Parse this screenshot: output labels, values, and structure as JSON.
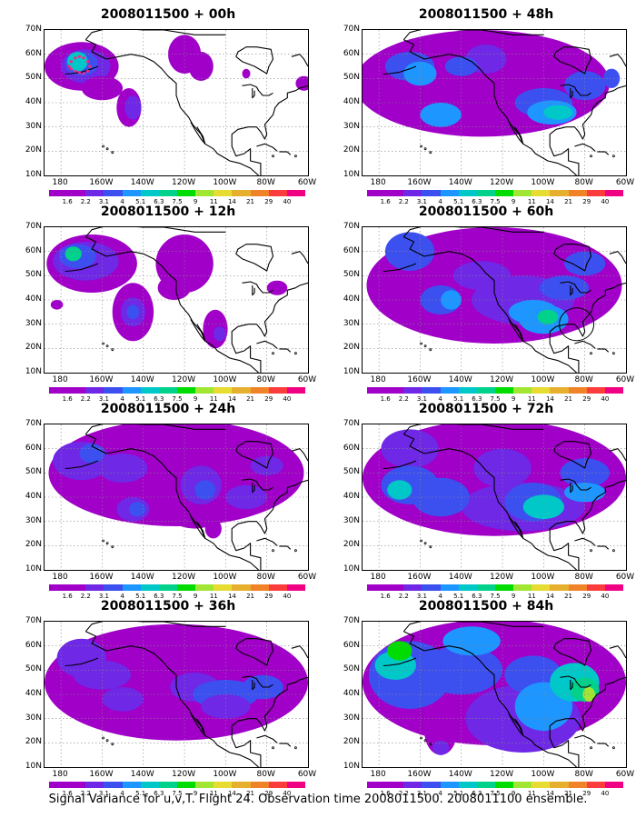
{
  "caption": "Signal Variance for u,v,T. Flight 24. Observation time 2008011500. 2008011100 ensemble.",
  "latitude_labels": [
    "70N",
    "60N",
    "50N",
    "40N",
    "30N",
    "20N",
    "10N"
  ],
  "longitude_labels": [
    "180",
    "160W",
    "140W",
    "120W",
    "100W",
    "80W",
    "60W"
  ],
  "colorbar": {
    "colors": [
      "#a000c8",
      "#6e28e6",
      "#3c50f0",
      "#1e96ff",
      "#00c8c8",
      "#00d28c",
      "#00dc00",
      "#a0e632",
      "#e6dc32",
      "#e6af2d",
      "#f08228",
      "#fa3c3c",
      "#f00082"
    ],
    "labels": [
      "1.6",
      "2.2",
      "3.1",
      "4",
      "5.1",
      "6.3",
      "7.5",
      "9",
      "11",
      "14",
      "21",
      "29",
      "40"
    ]
  },
  "panels": [
    {
      "title": "2008011500 + 00h",
      "lead_hours": 0
    },
    {
      "title": "2008011500 + 48h",
      "lead_hours": 48
    },
    {
      "title": "2008011500 + 12h",
      "lead_hours": 12
    },
    {
      "title": "2008011500 + 60h",
      "lead_hours": 60
    },
    {
      "title": "2008011500 + 24h",
      "lead_hours": 24
    },
    {
      "title": "2008011500 + 72h",
      "lead_hours": 72
    },
    {
      "title": "2008011500 + 36h",
      "lead_hours": 36
    },
    {
      "title": "2008011500 + 84h",
      "lead_hours": 84
    }
  ]
}
